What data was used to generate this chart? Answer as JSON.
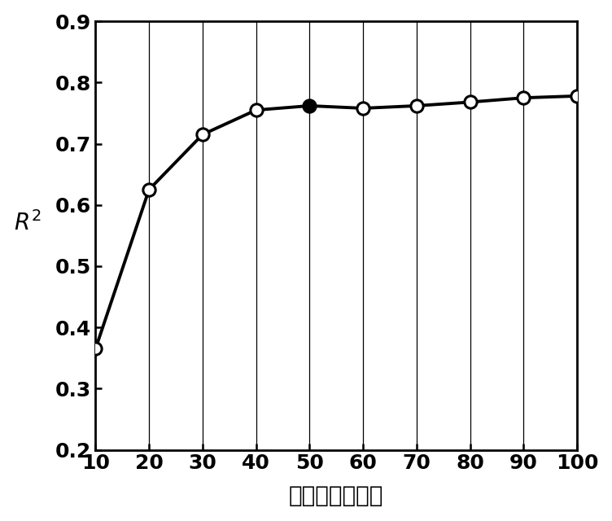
{
  "x": [
    10,
    20,
    30,
    40,
    50,
    60,
    70,
    80,
    90,
    100
  ],
  "y": [
    0.365,
    0.625,
    0.715,
    0.755,
    0.762,
    0.758,
    0.762,
    0.768,
    0.775,
    0.778
  ],
  "filled_index": 4,
  "xlabel": "相似点搜索个数",
  "ylabel": "$R^2$",
  "ylim": [
    0.2,
    0.9
  ],
  "xlim": [
    10,
    100
  ],
  "xticks": [
    10,
    20,
    30,
    40,
    50,
    60,
    70,
    80,
    90,
    100
  ],
  "yticks": [
    0.2,
    0.3,
    0.4,
    0.5,
    0.6,
    0.7,
    0.8,
    0.9
  ],
  "line_color": "#000000",
  "open_marker_facecolor": "#ffffff",
  "open_marker_edgecolor": "#000000",
  "filled_marker_facecolor": "#000000",
  "filled_marker_edgecolor": "#000000",
  "marker_size": 11,
  "line_width": 2.8,
  "background_color": "#ffffff",
  "grid_color": "#000000",
  "xlabel_fontsize": 20,
  "ylabel_fontsize": 20,
  "tick_fontsize": 18
}
